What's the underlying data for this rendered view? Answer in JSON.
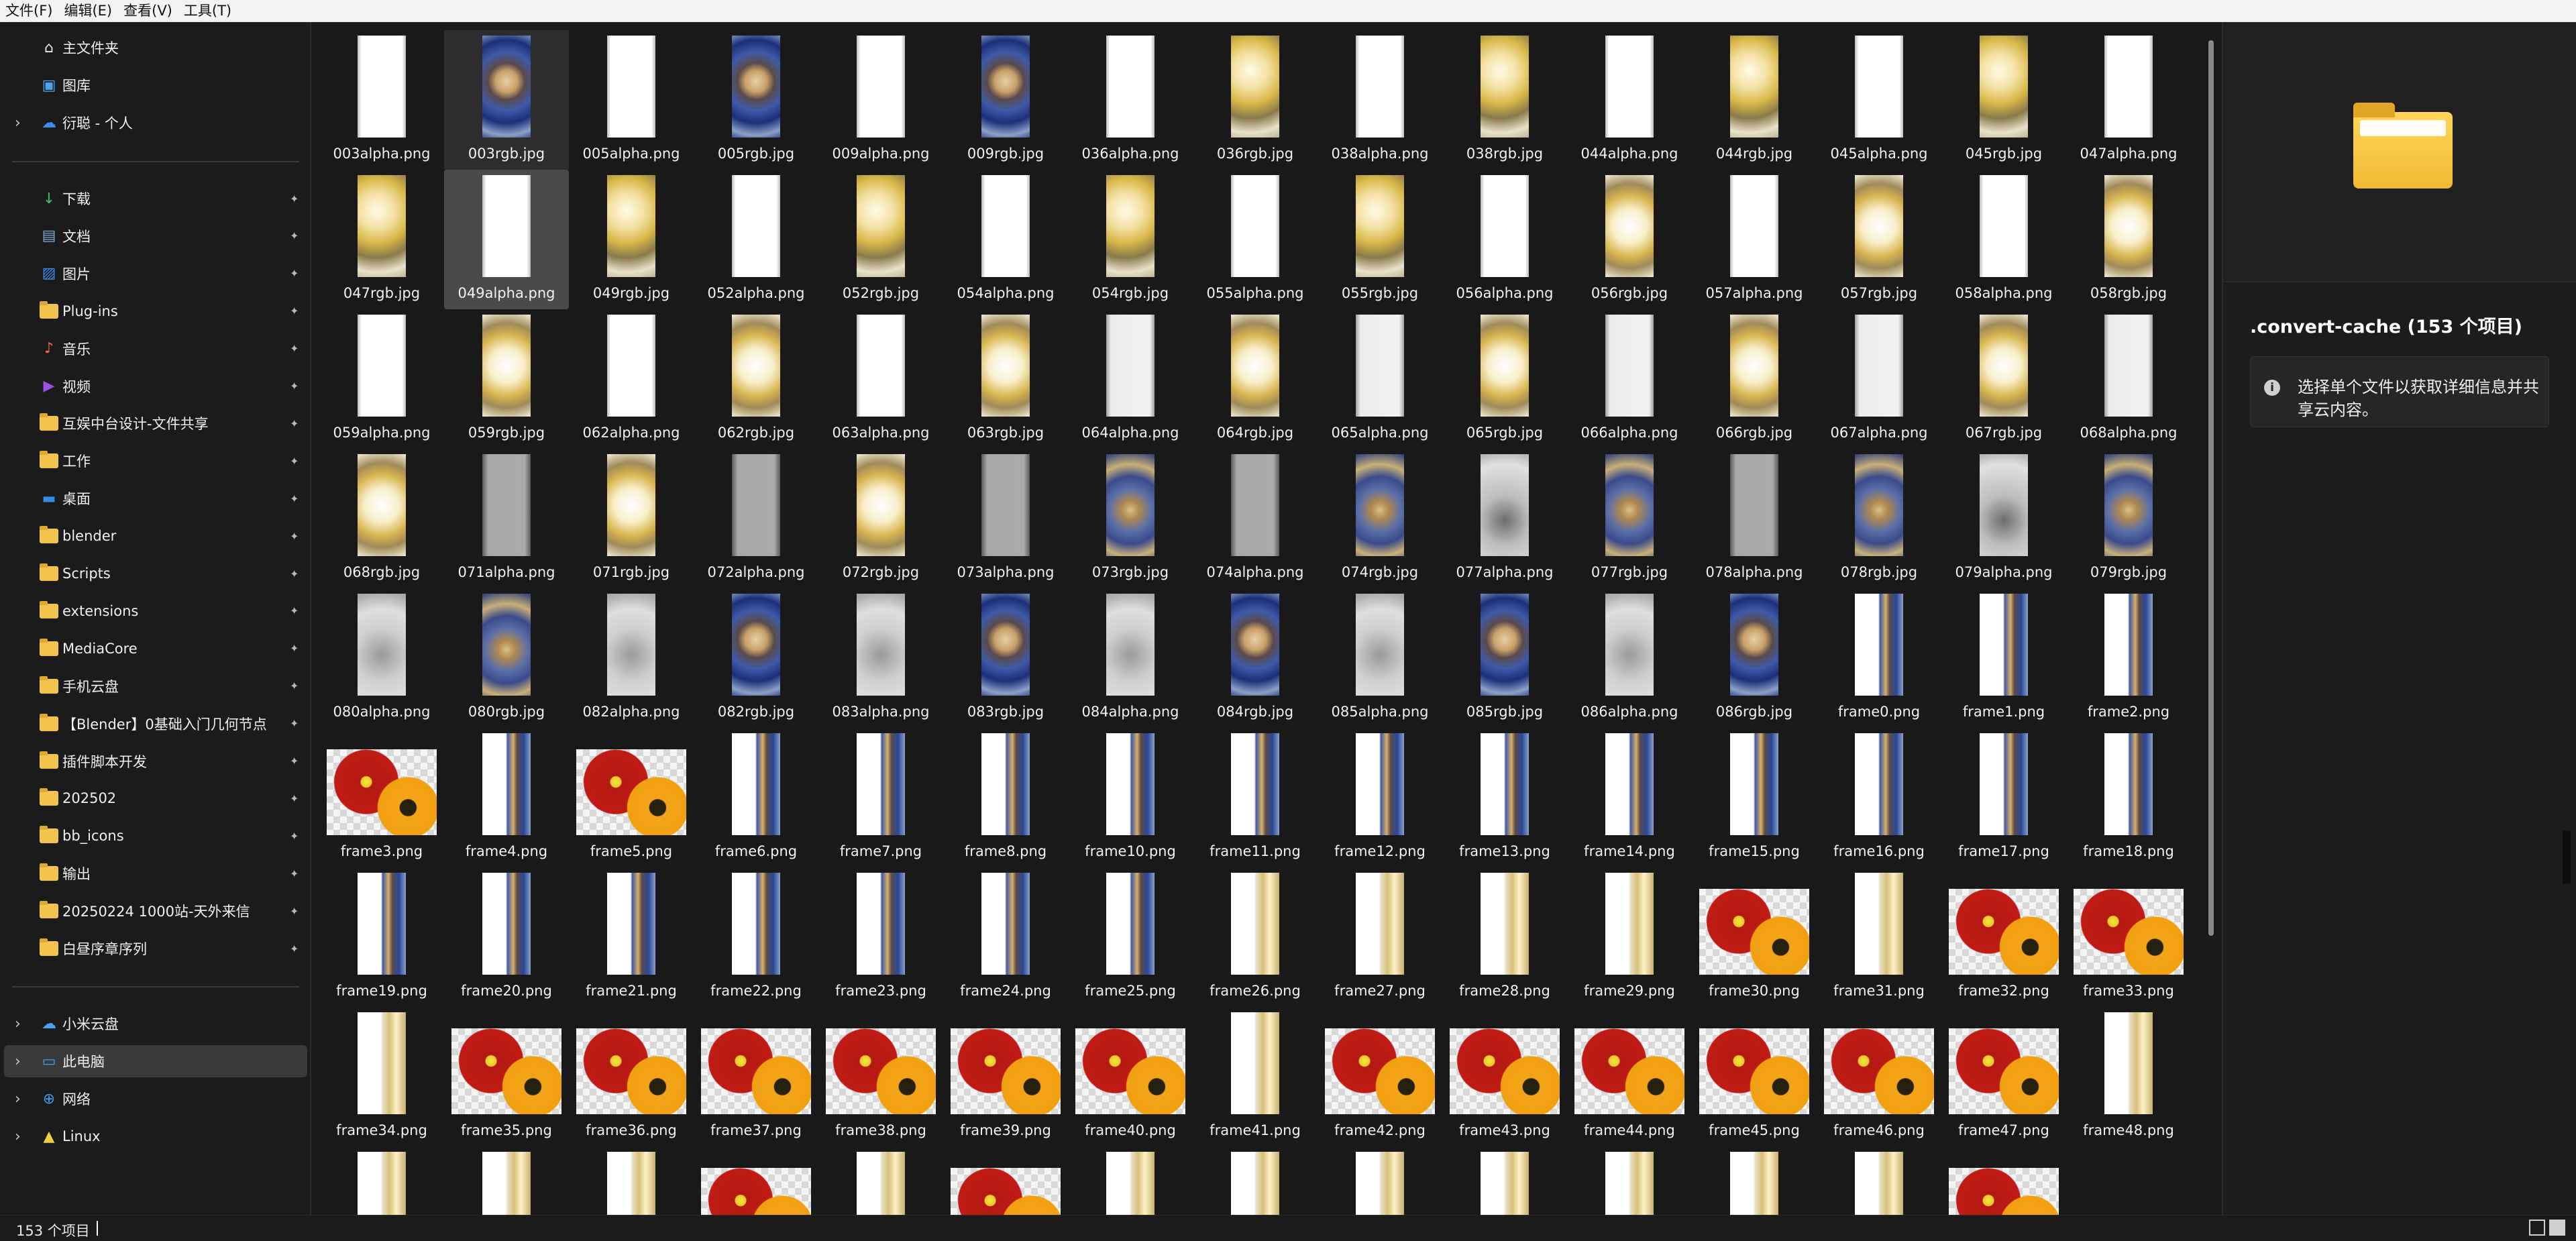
{
  "menu": [
    "文件(F)",
    "编辑(E)",
    "查看(V)",
    "工具(T)"
  ],
  "sidebar": {
    "top": [
      {
        "label": "主文件夹",
        "icon": "home-icon",
        "chevron": false
      },
      {
        "label": "图库",
        "icon": "gallery-icon",
        "chevron": false
      },
      {
        "label": "衍聪 - 个人",
        "icon": "onedrive-icon",
        "chevron": true
      }
    ],
    "quick": [
      {
        "label": "下载",
        "icon": "download-icon"
      },
      {
        "label": "文档",
        "icon": "documents-icon"
      },
      {
        "label": "图片",
        "icon": "pictures-icon"
      },
      {
        "label": "Plug-ins",
        "icon": "folder-icon"
      },
      {
        "label": "音乐",
        "icon": "music-icon"
      },
      {
        "label": "视频",
        "icon": "videos-icon"
      },
      {
        "label": "互娱中台设计-文件共享",
        "icon": "folder-icon"
      },
      {
        "label": "工作",
        "icon": "folder-icon"
      },
      {
        "label": "桌面",
        "icon": "desktop-icon"
      },
      {
        "label": "blender",
        "icon": "folder-icon"
      },
      {
        "label": "Scripts",
        "icon": "folder-icon"
      },
      {
        "label": "extensions",
        "icon": "folder-icon"
      },
      {
        "label": "MediaCore",
        "icon": "folder-icon"
      },
      {
        "label": "手机云盘",
        "icon": "folder-icon"
      },
      {
        "label": "【Blender】0基础入门几何节点",
        "icon": "folder-icon"
      },
      {
        "label": "插件脚本开发",
        "icon": "folder-icon"
      },
      {
        "label": "202502",
        "icon": "folder-icon"
      },
      {
        "label": "bb_icons",
        "icon": "folder-icon"
      },
      {
        "label": "输出",
        "icon": "folder-icon"
      },
      {
        "label": "20250224 1000站-天外来信",
        "icon": "folder-icon"
      },
      {
        "label": "白昼序章序列",
        "icon": "folder-icon"
      }
    ],
    "bottom": [
      {
        "label": "小米云盘",
        "icon": "cloud-icon"
      },
      {
        "label": "此电脑",
        "icon": "pc-icon",
        "selected": true
      },
      {
        "label": "网络",
        "icon": "network-icon"
      },
      {
        "label": "Linux",
        "icon": "linux-icon"
      }
    ]
  },
  "files": [
    {
      "name": "003alpha.png",
      "t": "t-white",
      "s": "tall"
    },
    {
      "name": "003rgb.jpg",
      "t": "t-blue",
      "s": "tall",
      "state": "hover"
    },
    {
      "name": "005alpha.png",
      "t": "t-white",
      "s": "tall"
    },
    {
      "name": "005rgb.jpg",
      "t": "t-blue",
      "s": "tall"
    },
    {
      "name": "009alpha.png",
      "t": "t-white",
      "s": "tall"
    },
    {
      "name": "009rgb.jpg",
      "t": "t-blue",
      "s": "tall"
    },
    {
      "name": "036alpha.png",
      "t": "t-white",
      "s": "tall"
    },
    {
      "name": "036rgb.jpg",
      "t": "t-gold",
      "s": "tall"
    },
    {
      "name": "038alpha.png",
      "t": "t-white",
      "s": "tall"
    },
    {
      "name": "038rgb.jpg",
      "t": "t-gold",
      "s": "tall"
    },
    {
      "name": "044alpha.png",
      "t": "t-white",
      "s": "tall"
    },
    {
      "name": "044rgb.jpg",
      "t": "t-gold",
      "s": "tall"
    },
    {
      "name": "045alpha.png",
      "t": "t-white",
      "s": "tall"
    },
    {
      "name": "045rgb.jpg",
      "t": "t-gold",
      "s": "tall"
    },
    {
      "name": "047alpha.png",
      "t": "t-white",
      "s": "tall"
    },
    {
      "name": "047rgb.jpg",
      "t": "t-gold",
      "s": "tall"
    },
    {
      "name": "049alpha.png",
      "t": "t-white",
      "s": "tall",
      "state": "sel"
    },
    {
      "name": "049rgb.jpg",
      "t": "t-gold",
      "s": "tall"
    },
    {
      "name": "052alpha.png",
      "t": "t-white",
      "s": "tall"
    },
    {
      "name": "052rgb.jpg",
      "t": "t-gold",
      "s": "tall"
    },
    {
      "name": "054alpha.png",
      "t": "t-white",
      "s": "tall"
    },
    {
      "name": "054rgb.jpg",
      "t": "t-gold",
      "s": "tall"
    },
    {
      "name": "055alpha.png",
      "t": "t-white",
      "s": "tall"
    },
    {
      "name": "055rgb.jpg",
      "t": "t-gold",
      "s": "tall"
    },
    {
      "name": "056alpha.png",
      "t": "t-white",
      "s": "tall"
    },
    {
      "name": "056rgb.jpg",
      "t": "t-goldb",
      "s": "tall"
    },
    {
      "name": "057alpha.png",
      "t": "t-white",
      "s": "tall"
    },
    {
      "name": "057rgb.jpg",
      "t": "t-goldb",
      "s": "tall"
    },
    {
      "name": "058alpha.png",
      "t": "t-white",
      "s": "tall"
    },
    {
      "name": "058rgb.jpg",
      "t": "t-goldb",
      "s": "tall"
    },
    {
      "name": "059alpha.png",
      "t": "t-white",
      "s": "tall"
    },
    {
      "name": "059rgb.jpg",
      "t": "t-goldb",
      "s": "tall"
    },
    {
      "name": "062alpha.png",
      "t": "t-white",
      "s": "tall"
    },
    {
      "name": "062rgb.jpg",
      "t": "t-goldb",
      "s": "tall"
    },
    {
      "name": "063alpha.png",
      "t": "t-white",
      "s": "tall"
    },
    {
      "name": "063rgb.jpg",
      "t": "t-goldb",
      "s": "tall"
    },
    {
      "name": "064alpha.png",
      "t": "t-light",
      "s": "tall"
    },
    {
      "name": "064rgb.jpg",
      "t": "t-goldb",
      "s": "tall"
    },
    {
      "name": "065alpha.png",
      "t": "t-light",
      "s": "tall"
    },
    {
      "name": "065rgb.jpg",
      "t": "t-goldb",
      "s": "tall"
    },
    {
      "name": "066alpha.png",
      "t": "t-light",
      "s": "tall"
    },
    {
      "name": "066rgb.jpg",
      "t": "t-goldb",
      "s": "tall"
    },
    {
      "name": "067alpha.png",
      "t": "t-light",
      "s": "tall"
    },
    {
      "name": "067rgb.jpg",
      "t": "t-goldb",
      "s": "tall"
    },
    {
      "name": "068alpha.png",
      "t": "t-light",
      "s": "tall"
    },
    {
      "name": "068rgb.jpg",
      "t": "t-goldb",
      "s": "tall"
    },
    {
      "name": "071alpha.png",
      "t": "t-mid",
      "s": "tall"
    },
    {
      "name": "071rgb.jpg",
      "t": "t-goldb",
      "s": "tall"
    },
    {
      "name": "072alpha.png",
      "t": "t-mid",
      "s": "tall"
    },
    {
      "name": "072rgb.jpg",
      "t": "t-goldb",
      "s": "tall"
    },
    {
      "name": "073alpha.png",
      "t": "t-mid",
      "s": "tall"
    },
    {
      "name": "073rgb.jpg",
      "t": "t-blue2",
      "s": "tall"
    },
    {
      "name": "074alpha.png",
      "t": "t-mid",
      "s": "tall"
    },
    {
      "name": "074rgb.jpg",
      "t": "t-blue2",
      "s": "tall"
    },
    {
      "name": "077alpha.png",
      "t": "t-grayc",
      "s": "tall"
    },
    {
      "name": "077rgb.jpg",
      "t": "t-blue2",
      "s": "tall"
    },
    {
      "name": "078alpha.png",
      "t": "t-mid",
      "s": "tall"
    },
    {
      "name": "078rgb.jpg",
      "t": "t-blue2",
      "s": "tall"
    },
    {
      "name": "079alpha.png",
      "t": "t-grayc",
      "s": "tall"
    },
    {
      "name": "079rgb.jpg",
      "t": "t-blue2",
      "s": "tall"
    },
    {
      "name": "080alpha.png",
      "t": "t-gray",
      "s": "tall"
    },
    {
      "name": "080rgb.jpg",
      "t": "t-blue2",
      "s": "tall"
    },
    {
      "name": "082alpha.png",
      "t": "t-gray",
      "s": "tall"
    },
    {
      "name": "082rgb.jpg",
      "t": "t-blue",
      "s": "tall"
    },
    {
      "name": "083alpha.png",
      "t": "t-gray",
      "s": "tall"
    },
    {
      "name": "083rgb.jpg",
      "t": "t-blue",
      "s": "tall"
    },
    {
      "name": "084alpha.png",
      "t": "t-gray",
      "s": "tall"
    },
    {
      "name": "084rgb.jpg",
      "t": "t-blue",
      "s": "tall"
    },
    {
      "name": "085alpha.png",
      "t": "t-gray",
      "s": "tall"
    },
    {
      "name": "085rgb.jpg",
      "t": "t-blue",
      "s": "tall"
    },
    {
      "name": "086alpha.png",
      "t": "t-gray",
      "s": "tall"
    },
    {
      "name": "086rgb.jpg",
      "t": "t-blue",
      "s": "tall"
    },
    {
      "name": "frame0.png",
      "t": "t-split",
      "s": "tall"
    },
    {
      "name": "frame1.png",
      "t": "t-split",
      "s": "tall"
    },
    {
      "name": "frame2.png",
      "t": "t-split",
      "s": "tall"
    },
    {
      "name": "frame3.png",
      "t": "t-flower",
      "s": "wide"
    },
    {
      "name": "frame4.png",
      "t": "t-split",
      "s": "tall"
    },
    {
      "name": "frame5.png",
      "t": "t-flower",
      "s": "wide"
    },
    {
      "name": "frame6.png",
      "t": "t-split",
      "s": "tall"
    },
    {
      "name": "frame7.png",
      "t": "t-split",
      "s": "tall"
    },
    {
      "name": "frame8.png",
      "t": "t-split",
      "s": "tall"
    },
    {
      "name": "frame10.png",
      "t": "t-split",
      "s": "tall"
    },
    {
      "name": "frame11.png",
      "t": "t-split",
      "s": "tall"
    },
    {
      "name": "frame12.png",
      "t": "t-split",
      "s": "tall"
    },
    {
      "name": "frame13.png",
      "t": "t-split",
      "s": "tall"
    },
    {
      "name": "frame14.png",
      "t": "t-split",
      "s": "tall"
    },
    {
      "name": "frame15.png",
      "t": "t-split",
      "s": "tall"
    },
    {
      "name": "frame16.png",
      "t": "t-split",
      "s": "tall"
    },
    {
      "name": "frame17.png",
      "t": "t-split",
      "s": "tall"
    },
    {
      "name": "frame18.png",
      "t": "t-split",
      "s": "tall"
    },
    {
      "name": "frame19.png",
      "t": "t-split",
      "s": "tall"
    },
    {
      "name": "frame20.png",
      "t": "t-split",
      "s": "tall"
    },
    {
      "name": "frame21.png",
      "t": "t-split",
      "s": "tall"
    },
    {
      "name": "frame22.png",
      "t": "t-split",
      "s": "tall"
    },
    {
      "name": "frame23.png",
      "t": "t-split",
      "s": "tall"
    },
    {
      "name": "frame24.png",
      "t": "t-split",
      "s": "tall"
    },
    {
      "name": "frame25.png",
      "t": "t-split",
      "s": "tall"
    },
    {
      "name": "frame26.png",
      "t": "t-splitg",
      "s": "tall"
    },
    {
      "name": "frame27.png",
      "t": "t-splitg",
      "s": "tall"
    },
    {
      "name": "frame28.png",
      "t": "t-splitg",
      "s": "tall"
    },
    {
      "name": "frame29.png",
      "t": "t-splitg",
      "s": "tall"
    },
    {
      "name": "frame30.png",
      "t": "t-flower",
      "s": "wide"
    },
    {
      "name": "frame31.png",
      "t": "t-splitg",
      "s": "tall"
    },
    {
      "name": "frame32.png",
      "t": "t-flower",
      "s": "wide"
    },
    {
      "name": "frame33.png",
      "t": "t-flower",
      "s": "wide"
    },
    {
      "name": "frame34.png",
      "t": "t-splitg",
      "s": "tall"
    },
    {
      "name": "frame35.png",
      "t": "t-flower",
      "s": "wide"
    },
    {
      "name": "frame36.png",
      "t": "t-flower",
      "s": "wide"
    },
    {
      "name": "frame37.png",
      "t": "t-flower",
      "s": "wide"
    },
    {
      "name": "frame38.png",
      "t": "t-flower",
      "s": "wide"
    },
    {
      "name": "frame39.png",
      "t": "t-flower",
      "s": "wide"
    },
    {
      "name": "frame40.png",
      "t": "t-flower",
      "s": "wide"
    },
    {
      "name": "frame41.png",
      "t": "t-splitg",
      "s": "tall"
    },
    {
      "name": "frame42.png",
      "t": "t-flower",
      "s": "wide"
    },
    {
      "name": "frame43.png",
      "t": "t-flower",
      "s": "wide"
    },
    {
      "name": "frame44.png",
      "t": "t-flower",
      "s": "wide"
    },
    {
      "name": "frame45.png",
      "t": "t-flower",
      "s": "wide"
    },
    {
      "name": "frame46.png",
      "t": "t-flower",
      "s": "wide"
    },
    {
      "name": "frame47.png",
      "t": "t-flower",
      "s": "wide"
    },
    {
      "name": "frame48.png",
      "t": "t-splitg",
      "s": "tall"
    }
  ],
  "partial_row": [
    "t-splitg",
    "t-splitg",
    "t-splitg",
    "t-flower",
    "t-splitg",
    "t-flower",
    "t-splitg",
    "t-splitg",
    "t-splitg",
    "t-splitg",
    "t-splitg",
    "t-splitg",
    "t-splitg",
    "t-flower"
  ],
  "preview": {
    "title": ".convert-cache (153 个项目)",
    "info": "选择单个文件以获取详细信息并共享云内容。"
  },
  "status": {
    "count": "153 个项目"
  },
  "colors": {
    "folder": "#f2c34d",
    "selected": "#3a3a3a",
    "background": "#191919"
  }
}
